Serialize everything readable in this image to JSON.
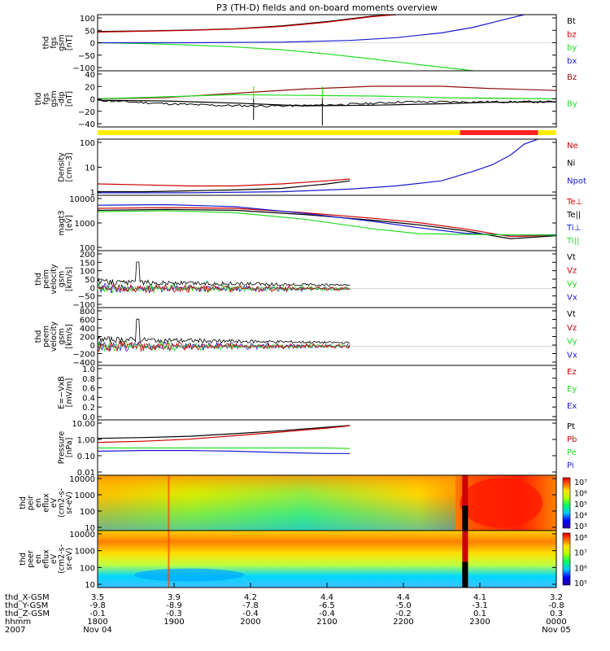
{
  "title": "P3 (TH-D) fields and on-board moments overview",
  "colors": {
    "black": "#000000",
    "red": "#cc0000",
    "green": "#22dd22",
    "blue": "#1a1acc",
    "darkred": "#8b1010",
    "yellow": "#ffee00",
    "mode_red": "#ff2020"
  },
  "time_axis": {
    "ticks": [
      {
        "hhmm": "1800",
        "x_gsm": "3.5",
        "y_gsm": "-9.8",
        "z_gsm": "-0.1"
      },
      {
        "hhmm": "1900",
        "x_gsm": "3.9",
        "y_gsm": "-8.9",
        "z_gsm": "-0.3"
      },
      {
        "hhmm": "2000",
        "x_gsm": "4.2",
        "y_gsm": "-7.8",
        "z_gsm": "-0.4"
      },
      {
        "hhmm": "2100",
        "x_gsm": "4.4",
        "y_gsm": "-6.5",
        "z_gsm": "-0.4"
      },
      {
        "hhmm": "2200",
        "x_gsm": "4.4",
        "y_gsm": "-5.0",
        "z_gsm": "-0.2"
      },
      {
        "hhmm": "2300",
        "x_gsm": "4.1",
        "y_gsm": "-3.1",
        "z_gsm": "0.1"
      },
      {
        "hhmm": "0000",
        "x_gsm": "3.2",
        "y_gsm": "-0.8",
        "z_gsm": "0.3"
      }
    ],
    "row_labels": [
      "thd_X-GSM",
      "thd_Y-GSM",
      "thd_Z-GSM",
      "hhmm",
      "2007"
    ],
    "date_start": "Nov 04",
    "date_end": "Nov 05"
  },
  "chart_data": [
    {
      "type": "line",
      "id": "fgs",
      "ylabel_lines": [
        "thd",
        "fgs",
        "gsm",
        "[nT]"
      ],
      "ylim": [
        -100,
        100
      ],
      "ytick_labels": [
        "100",
        "50",
        "0",
        "−50",
        "−100"
      ],
      "legend": [
        {
          "name": "Bt",
          "color": "#000000"
        },
        {
          "name": "bz",
          "color": "#cc0000"
        },
        {
          "name": "by",
          "color": "#22dd22"
        },
        {
          "name": "bx",
          "color": "#1a1acc"
        }
      ],
      "series": [
        {
          "name": "Bt",
          "color": "#000000",
          "points": [
            [
              0,
              40
            ],
            [
              0.1,
              42
            ],
            [
              0.2,
              45
            ],
            [
              0.3,
              50
            ],
            [
              0.4,
              60
            ],
            [
              0.5,
              75
            ],
            [
              0.6,
              95
            ],
            [
              0.65,
              100
            ]
          ]
        },
        {
          "name": "bz",
          "color": "#cc0000",
          "points": [
            [
              0,
              38
            ],
            [
              0.1,
              41
            ],
            [
              0.2,
              44
            ],
            [
              0.3,
              49
            ],
            [
              0.4,
              58
            ],
            [
              0.5,
              73
            ],
            [
              0.6,
              93
            ],
            [
              0.65,
              100
            ]
          ]
        },
        {
          "name": "by",
          "color": "#22dd22",
          "points": [
            [
              0,
              0
            ],
            [
              0.1,
              -3
            ],
            [
              0.2,
              -8
            ],
            [
              0.3,
              -15
            ],
            [
              0.4,
              -25
            ],
            [
              0.5,
              -40
            ],
            [
              0.6,
              -58
            ],
            [
              0.7,
              -78
            ],
            [
              0.82,
              -100
            ]
          ]
        },
        {
          "name": "bx",
          "color": "#1a1acc",
          "points": [
            [
              0,
              0
            ],
            [
              0.2,
              0
            ],
            [
              0.4,
              2
            ],
            [
              0.55,
              8
            ],
            [
              0.65,
              18
            ],
            [
              0.75,
              35
            ],
            [
              0.82,
              55
            ],
            [
              0.88,
              80
            ],
            [
              0.93,
              100
            ]
          ]
        }
      ]
    },
    {
      "type": "line",
      "id": "fgs_dip",
      "ylabel_lines": [
        "thd",
        "fgs",
        "gsm",
        "-dip",
        "[nT]"
      ],
      "ylim": [
        -40,
        40
      ],
      "ytick_labels": [
        "40",
        "20",
        "0",
        "−20",
        "−40"
      ],
      "legend": [
        {
          "name": "Bz",
          "color": "#8b1010"
        },
        {
          "name": "By",
          "color": "#22dd22"
        }
      ],
      "series": [
        {
          "name": "Bz",
          "color": "#8b1010",
          "points": [
            [
              0,
              0
            ],
            [
              0.15,
              2
            ],
            [
              0.3,
              8
            ],
            [
              0.45,
              14
            ],
            [
              0.6,
              18
            ],
            [
              0.75,
              18
            ],
            [
              0.85,
              15
            ],
            [
              0.95,
              13
            ],
            [
              1,
              12
            ]
          ]
        },
        {
          "name": "By",
          "color": "#22dd22",
          "points": [
            [
              0,
              0
            ],
            [
              0.15,
              3
            ],
            [
              0.3,
              6
            ],
            [
              0.45,
              5
            ],
            [
              0.6,
              4
            ],
            [
              0.75,
              2
            ],
            [
              0.85,
              1
            ],
            [
              1,
              0
            ]
          ]
        },
        {
          "name": "Bx",
          "color": "#000000",
          "points": [
            [
              0,
              -2
            ],
            [
              0.15,
              -3
            ],
            [
              0.3,
              -6
            ],
            [
              0.45,
              -10
            ],
            [
              0.6,
              -9
            ],
            [
              0.75,
              -7
            ],
            [
              0.85,
              -5
            ],
            [
              1,
              -4
            ]
          ]
        }
      ]
    },
    {
      "type": "line",
      "id": "density",
      "ylabel_lines": [
        "Density",
        "[cm−3]"
      ],
      "scale": "log",
      "ylim": [
        0.7,
        200
      ],
      "ytick_labels": [
        "100",
        "10",
        "1"
      ],
      "legend": [
        {
          "name": "Ne",
          "color": "#cc0000"
        },
        {
          "name": "Ni",
          "color": "#000000"
        },
        {
          "name": "Npot",
          "color": "#1a1acc"
        }
      ],
      "series": [
        {
          "name": "Ne",
          "color": "#cc0000",
          "points": [
            [
              0,
              2.2
            ],
            [
              0.1,
              2.0
            ],
            [
              0.2,
              1.8
            ],
            [
              0.3,
              1.8
            ],
            [
              0.4,
              2.2
            ],
            [
              0.5,
              3.0
            ],
            [
              0.55,
              3.6
            ]
          ]
        },
        {
          "name": "Ni",
          "color": "#000000",
          "points": [
            [
              0,
              1.0
            ],
            [
              0.1,
              1.0
            ],
            [
              0.2,
              1.1
            ],
            [
              0.3,
              1.2
            ],
            [
              0.4,
              1.4
            ],
            [
              0.5,
              2.2
            ],
            [
              0.55,
              3.0
            ]
          ]
        },
        {
          "name": "Npot",
          "color": "#1a1acc",
          "points": [
            [
              0,
              0.9
            ],
            [
              0.2,
              0.9
            ],
            [
              0.4,
              1.0
            ],
            [
              0.55,
              1.3
            ],
            [
              0.65,
              1.8
            ],
            [
              0.75,
              3
            ],
            [
              0.82,
              8
            ],
            [
              0.86,
              15
            ],
            [
              0.9,
              40
            ],
            [
              0.93,
              120
            ],
            [
              0.96,
              200
            ]
          ]
        }
      ]
    },
    {
      "type": "line",
      "id": "temperature",
      "ylabel_lines": [
        "magt3",
        "[eV]"
      ],
      "scale": "log",
      "ylim": [
        60,
        10000
      ],
      "ytick_labels": [
        "10000",
        "1000",
        "100"
      ],
      "legend": [
        {
          "name": "Te⊥",
          "color": "#cc0000"
        },
        {
          "name": "Te||",
          "color": "#000000"
        },
        {
          "name": "Ti⊥",
          "color": "#1a1acc"
        },
        {
          "name": "Ti||",
          "color": "#22dd22"
        }
      ],
      "series": [
        {
          "name": "Te⊥",
          "color": "#cc0000",
          "points": [
            [
              0,
              3000
            ],
            [
              0.15,
              3200
            ],
            [
              0.3,
              3000
            ],
            [
              0.45,
              2000
            ],
            [
              0.6,
              1200
            ],
            [
              0.7,
              800
            ],
            [
              0.8,
              450
            ],
            [
              0.9,
              220
            ],
            [
              1,
              250
            ]
          ]
        },
        {
          "name": "Te||",
          "color": "#000000",
          "points": [
            [
              0,
              2500
            ],
            [
              0.15,
              2700
            ],
            [
              0.3,
              2500
            ],
            [
              0.45,
              1700
            ],
            [
              0.6,
              1000
            ],
            [
              0.7,
              650
            ],
            [
              0.8,
              380
            ],
            [
              0.9,
              180
            ],
            [
              1,
              240
            ]
          ]
        },
        {
          "name": "Ti⊥",
          "color": "#1a1acc",
          "points": [
            [
              0,
              4000
            ],
            [
              0.15,
              4200
            ],
            [
              0.3,
              3500
            ],
            [
              0.45,
              1900
            ],
            [
              0.6,
              900
            ],
            [
              0.7,
              500
            ],
            [
              0.8,
              300
            ],
            [
              0.9,
              250
            ],
            [
              1,
              260
            ]
          ]
        },
        {
          "name": "Ti||",
          "color": "#22dd22",
          "points": [
            [
              0,
              2200
            ],
            [
              0.15,
              2400
            ],
            [
              0.3,
              2000
            ],
            [
              0.45,
              1100
            ],
            [
              0.6,
              450
            ],
            [
              0.7,
              290
            ],
            [
              0.8,
              270
            ],
            [
              0.9,
              260
            ],
            [
              1,
              250
            ]
          ]
        }
      ]
    },
    {
      "type": "line",
      "id": "peim_velocity",
      "ylabel_lines": [
        "thd",
        "peim",
        "velocity",
        "gsm",
        "[km/s]"
      ],
      "ylim": [
        -100,
        200
      ],
      "ytick_labels": [
        "200",
        "150",
        "100",
        "50",
        "0",
        "−50",
        "−100"
      ],
      "legend": [
        {
          "name": "Vt",
          "color": "#000000"
        },
        {
          "name": "Vz",
          "color": "#cc0000"
        },
        {
          "name": "Vy",
          "color": "#22dd22"
        },
        {
          "name": "Vx",
          "color": "#1a1acc"
        }
      ]
    },
    {
      "type": "line",
      "id": "peem_velocity",
      "ylabel_lines": [
        "thd",
        "peem",
        "velocity",
        "gsm",
        "[km/s]"
      ],
      "ylim": [
        -400,
        800
      ],
      "ytick_labels": [
        "800",
        "600",
        "400",
        "200",
        "0",
        "−200",
        "−400"
      ],
      "legend": [
        {
          "name": "Vt",
          "color": "#000000"
        },
        {
          "name": "Vz",
          "color": "#cc0000"
        },
        {
          "name": "Vy",
          "color": "#22dd22"
        },
        {
          "name": "Vx",
          "color": "#1a1acc"
        }
      ]
    },
    {
      "type": "line",
      "id": "efield",
      "ylabel_lines": [
        "E=−VxB",
        "[mV/m]"
      ],
      "ylim": [
        0,
        1
      ],
      "ytick_labels": [
        "1.0",
        "0.8",
        "0.6",
        "0.4",
        "0.2",
        "0.0"
      ],
      "legend": [
        {
          "name": "Ez",
          "color": "#cc0000"
        },
        {
          "name": "Ey",
          "color": "#22dd22"
        },
        {
          "name": "Ex",
          "color": "#1a1acc"
        }
      ],
      "series": []
    },
    {
      "type": "line",
      "id": "pressure",
      "ylabel_lines": [
        "Pressure",
        "[nPa]"
      ],
      "scale": "log",
      "ylim": [
        0.01,
        10
      ],
      "ytick_labels": [
        "10.00",
        "1.00",
        "0.10",
        "0.01"
      ],
      "legend": [
        {
          "name": "Pt",
          "color": "#000000"
        },
        {
          "name": "Pb",
          "color": "#cc0000"
        },
        {
          "name": "Pe",
          "color": "#22dd22"
        },
        {
          "name": "Pi",
          "color": "#1a1acc"
        }
      ],
      "series": [
        {
          "name": "Pt",
          "color": "#000000",
          "points": [
            [
              0,
              1.0
            ],
            [
              0.1,
              1.1
            ],
            [
              0.2,
              1.3
            ],
            [
              0.3,
              1.8
            ],
            [
              0.4,
              2.6
            ],
            [
              0.5,
              4.0
            ],
            [
              0.55,
              5.0
            ]
          ]
        },
        {
          "name": "Pb",
          "color": "#cc0000",
          "points": [
            [
              0,
              0.6
            ],
            [
              0.1,
              0.7
            ],
            [
              0.2,
              0.9
            ],
            [
              0.3,
              1.4
            ],
            [
              0.4,
              2.2
            ],
            [
              0.5,
              3.6
            ],
            [
              0.55,
              4.8
            ]
          ]
        },
        {
          "name": "Pe",
          "color": "#22dd22",
          "points": [
            [
              0,
              0.3
            ],
            [
              0.1,
              0.3
            ],
            [
              0.2,
              0.3
            ],
            [
              0.3,
              0.3
            ],
            [
              0.4,
              0.3
            ],
            [
              0.5,
              0.3
            ],
            [
              0.55,
              0.28
            ]
          ]
        },
        {
          "name": "Pi",
          "color": "#1a1acc",
          "points": [
            [
              0,
              0.2
            ],
            [
              0.1,
              0.22
            ],
            [
              0.2,
              0.22
            ],
            [
              0.3,
              0.2
            ],
            [
              0.4,
              0.17
            ],
            [
              0.5,
              0.15
            ],
            [
              0.55,
              0.15
            ]
          ]
        }
      ]
    },
    {
      "type": "heatmap",
      "id": "peir_spec",
      "ylabel_lines": [
        "thd",
        "peir",
        "en",
        "eflux",
        "eV",
        "(cm2-s-",
        "sr-eV)"
      ],
      "ytick_labels": [
        "10000",
        "1000",
        "100",
        "10"
      ],
      "colorbar_labels": [
        "10⁷",
        "10⁶",
        "10⁵",
        "10⁴",
        "10³"
      ]
    },
    {
      "type": "heatmap",
      "id": "peer_spec",
      "ylabel_lines": [
        "thd",
        "peer",
        "en",
        "eflux",
        "eV",
        "(cm2-s-",
        "sr-eV)"
      ],
      "ytick_labels": [
        "10000",
        "1000",
        "100",
        "10"
      ],
      "colorbar_labels": [
        "10⁸",
        "10⁷",
        "10⁶",
        "10⁵"
      ]
    }
  ]
}
